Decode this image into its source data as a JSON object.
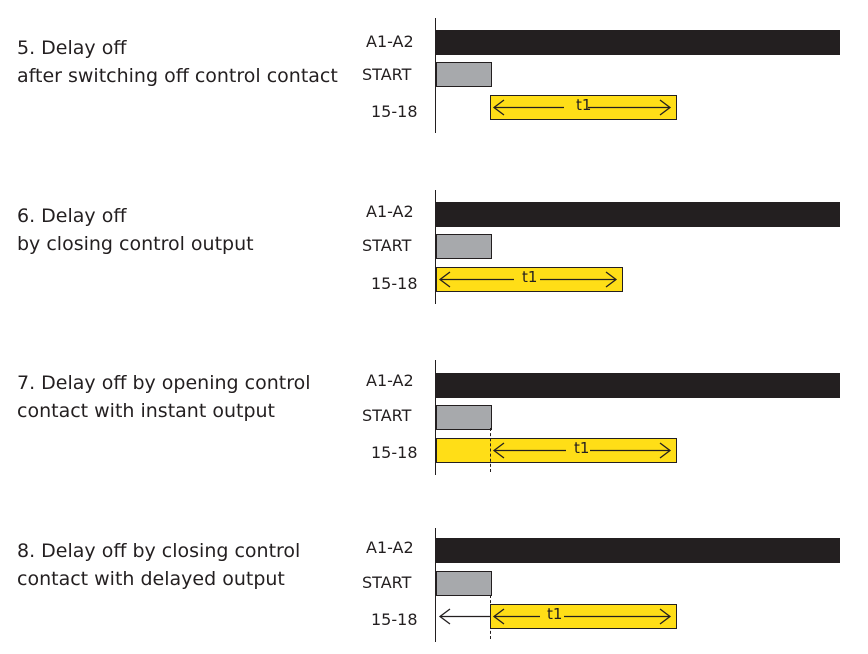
{
  "diagrams": [
    {
      "title_lines": [
        "5. Delay off",
        "after switching off control contact"
      ],
      "labels": {
        "power": "A1-A2",
        "start": "START",
        "output": "15-18"
      },
      "t1": "t1"
    },
    {
      "title_lines": [
        "6. Delay off",
        "by closing control output"
      ],
      "labels": {
        "power": "A1-A2",
        "start": "START",
        "output": "15-18"
      },
      "t1": "t1"
    },
    {
      "title_lines": [
        "7. Delay off by opening control",
        "contact with instant output"
      ],
      "labels": {
        "power": "A1-A2",
        "start": "START",
        "output": "15-18"
      },
      "t1": "t1"
    },
    {
      "title_lines": [
        "8. Delay off by closing control",
        "contact with delayed output"
      ],
      "labels": {
        "power": "A1-A2",
        "start": "START",
        "output": "15-18"
      },
      "t1": "t1"
    }
  ],
  "colors": {
    "power_bar": "#231f20",
    "start_bar": "#a7a9ac",
    "output_bar": "#ffde17"
  }
}
